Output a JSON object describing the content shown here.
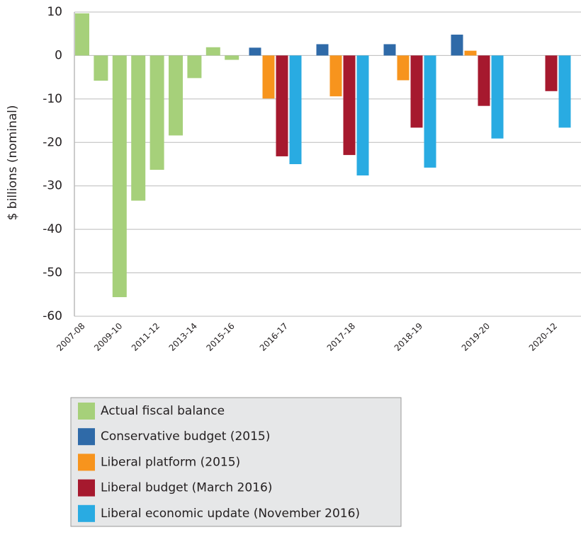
{
  "chart_data": {
    "type": "bar",
    "y_label": "$ billions (nominal)",
    "categories": [
      "2007-08",
      null,
      "2009-10",
      null,
      "2011-12",
      null,
      "2013-14",
      null,
      "2015-16",
      "2016-17",
      "2017-18",
      "2018-19",
      "2019-20",
      "2020-12"
    ],
    "series": [
      {
        "name": "Actual fiscal balance",
        "color": "#a6d07a",
        "values": [
          9.7,
          -5.8,
          -55.6,
          -33.4,
          -26.3,
          -18.4,
          -5.2,
          1.9,
          -1.0,
          null,
          null,
          null,
          null,
          null
        ]
      },
      {
        "name": "Conservative budget (2015)",
        "color": "#2f6aa8",
        "values": [
          null,
          null,
          null,
          null,
          null,
          null,
          null,
          null,
          null,
          1.8,
          2.6,
          2.6,
          4.8,
          null
        ]
      },
      {
        "name": "Liberal platform (2015)",
        "color": "#f7941d",
        "values": [
          null,
          null,
          null,
          null,
          null,
          null,
          null,
          null,
          null,
          -9.9,
          -9.4,
          -5.7,
          1.1,
          null
        ]
      },
      {
        "name": "Liberal budget (March 2016)",
        "color": "#a6192e",
        "values": [
          null,
          null,
          null,
          null,
          null,
          null,
          null,
          null,
          null,
          -23.2,
          -22.9,
          -16.6,
          -11.6,
          -8.2
        ]
      },
      {
        "name": "Liberal economic update (November 2016)",
        "color": "#29abe2",
        "values": [
          null,
          null,
          null,
          null,
          null,
          null,
          null,
          null,
          null,
          -25.0,
          -27.6,
          -25.8,
          -19.1,
          -16.6
        ]
      }
    ],
    "ylim": [
      -60,
      10
    ],
    "yticks": [
      -60,
      -50,
      -40,
      -30,
      -20,
      -10,
      0,
      10
    ],
    "grid": true,
    "legend": "bottom"
  }
}
